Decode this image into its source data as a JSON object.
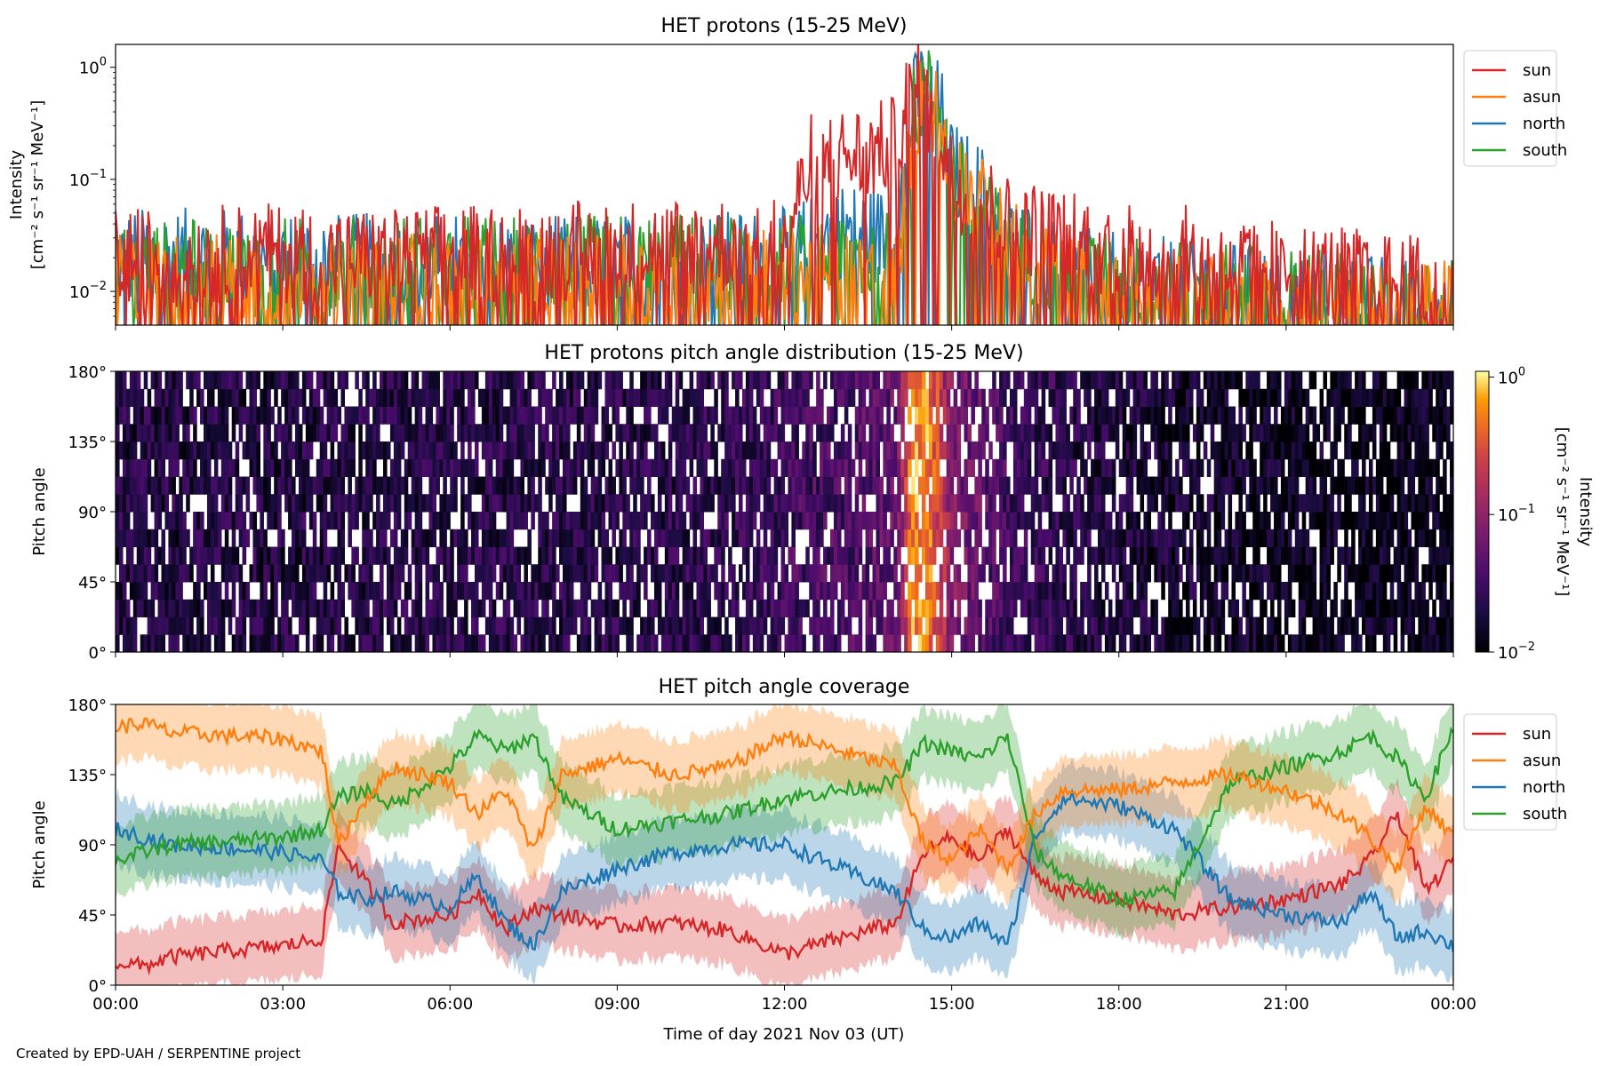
{
  "figure": {
    "credit": "Created by EPD-UAH / SERPENTINE project",
    "xlabel": "Time of day 2021 Nov 03 (UT)",
    "x_ticks": [
      "00:00",
      "03:00",
      "06:00",
      "09:00",
      "12:00",
      "15:00",
      "18:00",
      "21:00",
      "00:00"
    ]
  },
  "colors": {
    "sun": "#d62728",
    "asun": "#ff7f0e",
    "north": "#1f77b4",
    "south": "#2ca02c"
  },
  "chart_data": [
    {
      "type": "line",
      "title": "HET protons (15-25 MeV)",
      "ylabel_line1": "Intensity",
      "ylabel_line2": "[cm⁻² s⁻¹ sr⁻¹ MeV⁻¹]",
      "yscale": "log",
      "ylim": [
        0.005,
        1.6
      ],
      "xlim_hours": [
        0,
        24
      ],
      "y_ticks": [
        {
          "value": 0.01,
          "base": "10",
          "exp": "−2"
        },
        {
          "value": 0.1,
          "base": "10",
          "exp": "−1"
        },
        {
          "value": 1,
          "base": "10",
          "exp": "0"
        }
      ],
      "legend": [
        "sun",
        "asun",
        "north",
        "south"
      ],
      "series": [
        {
          "name": "sun",
          "x": [
            0,
            1,
            2,
            3,
            4,
            5,
            6,
            7,
            8,
            9,
            10,
            11,
            12,
            12.5,
            13,
            13.5,
            14,
            14.2,
            14.4,
            14.6,
            14.8,
            15,
            15.5,
            16,
            16.5,
            17,
            18,
            19,
            20,
            21,
            22,
            23,
            24
          ],
          "y": [
            0.02,
            0.02,
            0.022,
            0.022,
            0.02,
            0.02,
            0.022,
            0.022,
            0.023,
            0.024,
            0.025,
            0.026,
            0.03,
            0.15,
            0.16,
            0.17,
            0.2,
            0.5,
            0.8,
            0.4,
            0.25,
            0.1,
            0.07,
            0.04,
            0.035,
            0.03,
            0.025,
            0.022,
            0.018,
            0.016,
            0.014,
            0.012,
            0.01
          ]
        },
        {
          "name": "asun",
          "x": [
            0,
            2,
            4,
            6,
            8,
            10,
            12,
            13,
            14,
            14.3,
            14.5,
            14.8,
            15,
            15.5,
            16,
            17,
            18,
            20,
            22,
            24
          ],
          "y": [
            0.012,
            0.012,
            0.012,
            0.013,
            0.013,
            0.012,
            0.014,
            0.013,
            0.012,
            0.3,
            0.6,
            0.35,
            0.12,
            0.06,
            0.025,
            0.012,
            0.01,
            0.008,
            0.007,
            0.007
          ]
        },
        {
          "name": "north",
          "x": [
            0,
            2,
            4,
            6,
            8,
            10,
            12,
            13,
            14,
            14.3,
            14.5,
            14.8,
            15,
            15.5,
            16,
            17,
            18,
            20,
            22,
            24
          ],
          "y": [
            0.02,
            0.02,
            0.018,
            0.018,
            0.017,
            0.018,
            0.02,
            0.035,
            0.03,
            0.45,
            0.7,
            0.4,
            0.12,
            0.08,
            0.03,
            0.015,
            0.012,
            0.01,
            0.008,
            0.007
          ]
        },
        {
          "name": "south",
          "x": [
            0,
            2,
            4,
            6,
            8,
            10,
            12,
            13,
            14,
            14.3,
            14.5,
            14.8,
            15,
            15.5,
            16,
            17,
            18,
            20,
            22,
            24
          ],
          "y": [
            0.015,
            0.016,
            0.017,
            0.018,
            0.017,
            0.018,
            0.018,
            0.02,
            0.02,
            0.35,
            0.65,
            0.4,
            0.1,
            0.05,
            0.025,
            0.014,
            0.012,
            0.01,
            0.008,
            0.007
          ]
        }
      ]
    },
    {
      "type": "heatmap",
      "title": "HET protons pitch angle distribution (15-25 MeV)",
      "ylabel": "Pitch angle",
      "y_ticks": [
        "0°",
        "45°",
        "90°",
        "135°",
        "180°"
      ],
      "ylim": [
        0,
        180
      ],
      "xlim_hours": [
        0,
        24
      ],
      "colorbar": {
        "label_line1": "Intensity",
        "label_line2": "[cm⁻² s⁻¹ sr⁻¹ MeV⁻¹]",
        "scale": "log",
        "range": [
          0.01,
          1.1
        ],
        "colormap": "inferno",
        "ticks": [
          {
            "value": 0.01,
            "base": "10",
            "exp": "−2"
          },
          {
            "value": 0.1,
            "base": "10",
            "exp": "−1"
          },
          {
            "value": 1,
            "base": "10",
            "exp": "0"
          }
        ]
      },
      "profile_hours": [
        0,
        3,
        3.8,
        6,
        9,
        11,
        12,
        13,
        14,
        14.3,
        14.6,
        15,
        15.5,
        16,
        18,
        21,
        24
      ],
      "profile_intensity": [
        0.02,
        0.02,
        0.02,
        0.022,
        0.022,
        0.023,
        0.03,
        0.035,
        0.05,
        0.6,
        0.5,
        0.08,
        0.05,
        0.03,
        0.018,
        0.014,
        0.012
      ]
    },
    {
      "type": "line",
      "title": "HET pitch angle coverage",
      "ylabel": "Pitch angle",
      "y_ticks": [
        "0°",
        "45°",
        "90°",
        "135°",
        "180°"
      ],
      "ylim": [
        0,
        180
      ],
      "xlim_hours": [
        0,
        24
      ],
      "legend": [
        "sun",
        "asun",
        "north",
        "south"
      ],
      "series": [
        {
          "name": "sun",
          "x": [
            0,
            0.5,
            1,
            2,
            3,
            3.7,
            4,
            4.5,
            5,
            6,
            6.5,
            7,
            7.5,
            8,
            9,
            10,
            11,
            12,
            13,
            14,
            14.5,
            15,
            15.5,
            16,
            16.5,
            17,
            18,
            19,
            20,
            21,
            22,
            22.5,
            23,
            23.5,
            24
          ],
          "y": [
            15,
            12,
            18,
            22,
            25,
            30,
            90,
            65,
            40,
            45,
            60,
            35,
            50,
            45,
            38,
            40,
            35,
            20,
            30,
            40,
            85,
            95,
            80,
            100,
            70,
            60,
            55,
            45,
            50,
            55,
            65,
            80,
            110,
            60,
            80
          ]
        },
        {
          "name": "asun",
          "x": [
            0,
            0.5,
            1,
            2,
            3,
            3.7,
            4,
            4.5,
            5,
            6,
            6.5,
            7,
            7.5,
            8,
            9,
            10,
            11,
            12,
            13,
            14,
            14.5,
            15,
            15.5,
            16,
            16.5,
            17,
            18,
            19,
            20,
            21,
            22,
            22.5,
            23,
            23.5,
            24
          ],
          "y": [
            165,
            168,
            162,
            160,
            158,
            150,
            90,
            120,
            140,
            130,
            110,
            125,
            85,
            135,
            145,
            135,
            140,
            160,
            150,
            140,
            90,
            80,
            100,
            75,
            110,
            125,
            125,
            130,
            135,
            125,
            110,
            95,
            75,
            115,
            95
          ]
        },
        {
          "name": "north",
          "x": [
            0,
            0.5,
            1,
            2,
            3,
            3.7,
            4,
            4.5,
            5,
            6,
            6.5,
            7,
            7.5,
            8,
            9,
            10,
            11,
            12,
            13,
            14,
            14.5,
            15,
            15.5,
            16,
            16.5,
            17,
            18,
            19,
            20,
            21,
            22,
            22.5,
            23,
            23.5,
            24
          ],
          "y": [
            100,
            95,
            90,
            88,
            85,
            80,
            60,
            55,
            60,
            50,
            70,
            40,
            25,
            60,
            75,
            85,
            90,
            90,
            75,
            60,
            35,
            30,
            40,
            25,
            95,
            120,
            115,
            100,
            55,
            45,
            40,
            60,
            30,
            35,
            25
          ]
        },
        {
          "name": "south",
          "x": [
            0,
            0.5,
            1,
            2,
            3,
            3.7,
            4,
            4.5,
            5,
            6,
            6.5,
            7,
            7.5,
            8,
            9,
            10,
            11,
            12,
            13,
            14,
            14.5,
            15,
            15.5,
            16,
            16.5,
            17,
            18,
            19,
            20,
            21,
            22,
            22.5,
            23,
            23.5,
            24
          ],
          "y": [
            80,
            85,
            90,
            92,
            95,
            100,
            120,
            125,
            115,
            140,
            160,
            150,
            160,
            120,
            100,
            105,
            110,
            120,
            125,
            130,
            155,
            150,
            145,
            160,
            85,
            70,
            55,
            60,
            130,
            140,
            150,
            160,
            145,
            120,
            165
          ]
        }
      ]
    }
  ]
}
